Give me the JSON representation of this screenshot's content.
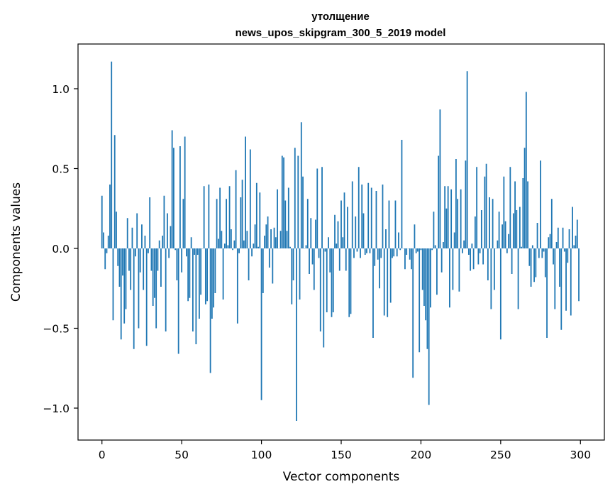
{
  "chart_data": {
    "type": "bar",
    "title_line1": "утолщение",
    "title_line2": "news_upos_skipgram_300_5_2019 model",
    "xlabel": "Vector components",
    "ylabel": "Components values",
    "xlim": [
      -15,
      315
    ],
    "ylim": [
      -1.2,
      1.28
    ],
    "x_ticks": [
      0,
      50,
      100,
      150,
      200,
      250,
      300
    ],
    "x_tick_labels": [
      "0",
      "50",
      "100",
      "150",
      "200",
      "250",
      "300"
    ],
    "y_ticks": [
      1.0,
      0.5,
      0.0,
      -0.5,
      -1.0
    ],
    "y_tick_labels": [
      "1.0",
      "0.5",
      "0.0",
      "−0.5",
      "−1.0"
    ],
    "grid": false,
    "bar_color": "#1f77b4",
    "x": "0..299 (component index)",
    "values": [
      0.33,
      0.1,
      -0.13,
      -0.03,
      0.08,
      0.4,
      1.17,
      -0.45,
      0.71,
      0.23,
      -0.11,
      -0.24,
      -0.57,
      -0.17,
      -0.47,
      -0.38,
      0.19,
      -0.14,
      -0.26,
      0.13,
      -0.63,
      -0.05,
      0.22,
      -0.5,
      -0.15,
      0.15,
      -0.26,
      0.08,
      -0.61,
      -0.03,
      0.32,
      -0.14,
      -0.36,
      -0.31,
      -0.5,
      -0.14,
      0.05,
      -0.24,
      0.08,
      0.33,
      -0.52,
      0.22,
      -0.06,
      0.14,
      0.74,
      0.63,
      -0.01,
      -0.2,
      -0.66,
      0.64,
      -0.15,
      0.31,
      0.7,
      -0.05,
      -0.33,
      -0.31,
      0.07,
      -0.52,
      -0.04,
      -0.6,
      -0.04,
      -0.44,
      -0.29,
      0.0,
      0.39,
      -0.35,
      -0.33,
      0.4,
      -0.78,
      -0.44,
      -0.37,
      -0.28,
      0.31,
      0.06,
      0.38,
      0.11,
      -0.32,
      0.03,
      0.31,
      0.02,
      0.39,
      0.12,
      -0.01,
      0.05,
      0.49,
      -0.47,
      -0.03,
      0.32,
      0.43,
      0.05,
      0.7,
      0.11,
      -0.2,
      0.62,
      -0.05,
      0.03,
      0.15,
      0.41,
      0.01,
      0.35,
      -0.95,
      -0.28,
      0.08,
      0.15,
      0.2,
      -0.12,
      0.12,
      -0.22,
      0.13,
      0.07,
      0.37,
      0.0,
      0.11,
      0.58,
      0.57,
      0.3,
      0.11,
      0.38,
      0.01,
      -0.35,
      -0.2,
      0.63,
      -1.08,
      0.58,
      -0.32,
      0.79,
      0.45,
      0.0,
      0.02,
      0.31,
      -0.16,
      0.19,
      -0.1,
      -0.26,
      0.18,
      0.5,
      -0.06,
      -0.52,
      0.51,
      -0.62,
      -0.02,
      -0.4,
      0.07,
      -0.15,
      -0.43,
      -0.4,
      0.21,
      0.03,
      0.17,
      -0.14,
      0.3,
      0.07,
      0.35,
      -0.14,
      0.26,
      -0.43,
      -0.41,
      0.42,
      -0.06,
      0.2,
      -0.02,
      0.51,
      -0.06,
      0.4,
      0.22,
      -0.04,
      -0.03,
      0.41,
      -0.03,
      0.38,
      -0.56,
      -0.11,
      0.36,
      -0.07,
      -0.25,
      -0.06,
      0.4,
      -0.42,
      0.12,
      -0.43,
      0.3,
      -0.34,
      -0.06,
      -0.05,
      0.3,
      -0.05,
      0.1,
      -0.01,
      0.68,
      0.0,
      -0.13,
      -0.04,
      0.0,
      -0.07,
      -0.13,
      -0.81,
      0.15,
      -0.03,
      -0.02,
      -0.65,
      -0.01,
      -0.26,
      -0.36,
      -0.45,
      -0.63,
      -0.98,
      -0.37,
      -0.01,
      0.23,
      0.02,
      -0.29,
      0.58,
      0.87,
      -0.15,
      0.04,
      0.39,
      0.25,
      0.39,
      -0.37,
      0.37,
      -0.26,
      0.1,
      0.56,
      0.31,
      -0.27,
      0.37,
      -0.03,
      0.05,
      0.55,
      1.11,
      -0.04,
      -0.14,
      0.03,
      -0.13,
      0.2,
      0.51,
      -0.1,
      -0.03,
      0.24,
      -0.1,
      0.45,
      0.53,
      -0.2,
      0.32,
      -0.38,
      0.31,
      -0.26,
      0.0,
      0.05,
      0.23,
      -0.57,
      0.15,
      0.45,
      0.17,
      -0.03,
      0.09,
      0.51,
      -0.16,
      0.22,
      0.42,
      0.24,
      -0.38,
      0.26,
      0.01,
      0.44,
      0.63,
      0.98,
      0.42,
      -0.11,
      -0.24,
      0.02,
      -0.21,
      -0.18,
      0.16,
      -0.06,
      0.55,
      -0.06,
      -0.02,
      -0.18,
      -0.56,
      0.07,
      0.09,
      0.31,
      -0.1,
      -0.38,
      0.04,
      0.13,
      -0.24,
      -0.51,
      0.13,
      -0.02,
      -0.39,
      -0.09,
      0.12,
      -0.42,
      0.26,
      0.02,
      0.08,
      0.18,
      -0.33
    ]
  }
}
